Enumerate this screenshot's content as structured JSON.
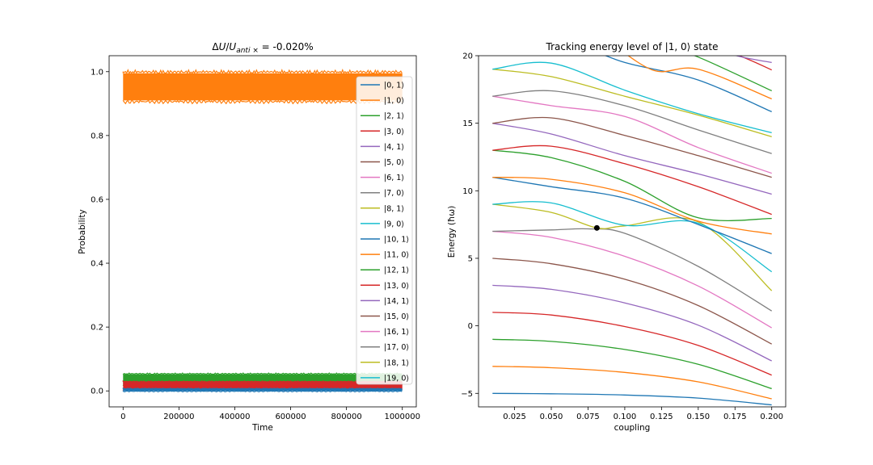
{
  "chart_data": [
    {
      "type": "line",
      "title": "ΔU/U_{anti×} = -0.020%",
      "title_parts": {
        "delta": "Δ",
        "u1": "U",
        "slash": "/",
        "u2": "U",
        "sub": "anti ×",
        "rest": " = -0.020%"
      },
      "xlabel": "Time",
      "ylabel": "Probability",
      "xlim": [
        -50000,
        1050000
      ],
      "ylim": [
        -0.05,
        1.05
      ],
      "xticks": [
        0,
        200000,
        400000,
        600000,
        800000,
        1000000
      ],
      "xtick_labels": [
        "0",
        "200000",
        "400000",
        "600000",
        "800000",
        "1000000"
      ],
      "yticks": [
        0.0,
        0.2,
        0.4,
        0.6,
        0.8,
        1.0
      ],
      "ytick_labels": [
        "0.0",
        "0.2",
        "0.4",
        "0.6",
        "0.8",
        "1.0"
      ],
      "legend_position": "right",
      "bands": [
        {
          "label": "|1, 0⟩",
          "color": "#ff7f0e",
          "x": [
            0,
            1000000
          ],
          "ymin": 0.91,
          "ymax": 0.995
        },
        {
          "label": "|2, 1⟩",
          "color": "#2ca02c",
          "x": [
            0,
            1000000
          ],
          "ymin": 0.018,
          "ymax": 0.052
        },
        {
          "label": "|3, 0⟩",
          "color": "#d62728",
          "x": [
            0,
            1000000
          ],
          "ymin": 0.004,
          "ymax": 0.028
        },
        {
          "label": "|0, 1⟩",
          "color": "#1f77b4",
          "x": [
            0,
            1000000
          ],
          "ymin": 0.0,
          "ymax": 0.006
        }
      ],
      "series": [
        {
          "name": "|0, 1⟩",
          "color": "#1f77b4"
        },
        {
          "name": "|1, 0⟩",
          "color": "#ff7f0e"
        },
        {
          "name": "|2, 1⟩",
          "color": "#2ca02c"
        },
        {
          "name": "|3, 0⟩",
          "color": "#d62728"
        },
        {
          "name": "|4, 1⟩",
          "color": "#9467bd"
        },
        {
          "name": "|5, 0⟩",
          "color": "#8c564b"
        },
        {
          "name": "|6, 1⟩",
          "color": "#e377c2"
        },
        {
          "name": "|7, 0⟩",
          "color": "#7f7f7f"
        },
        {
          "name": "|8, 1⟩",
          "color": "#bcbd22"
        },
        {
          "name": "|9, 0⟩",
          "color": "#17becf"
        },
        {
          "name": "|10, 1⟩",
          "color": "#1f77b4"
        },
        {
          "name": "|11, 0⟩",
          "color": "#ff7f0e"
        },
        {
          "name": "|12, 1⟩",
          "color": "#2ca02c"
        },
        {
          "name": "|13, 0⟩",
          "color": "#d62728"
        },
        {
          "name": "|14, 1⟩",
          "color": "#9467bd"
        },
        {
          "name": "|15, 0⟩",
          "color": "#8c564b"
        },
        {
          "name": "|16, 1⟩",
          "color": "#e377c2"
        },
        {
          "name": "|17, 0⟩",
          "color": "#7f7f7f"
        },
        {
          "name": "|18, 1⟩",
          "color": "#bcbd22"
        },
        {
          "name": "|19, 0⟩",
          "color": "#17becf"
        }
      ]
    },
    {
      "type": "line",
      "title": "Tracking energy level of |1, 0⟩ state",
      "xlabel": "coupling",
      "ylabel": "Energy (ħω)",
      "xlim": [
        0.0005,
        0.2095
      ],
      "ylim": [
        -6.0,
        20.0
      ],
      "xticks": [
        0.025,
        0.05,
        0.075,
        0.1,
        0.125,
        0.15,
        0.175,
        0.2
      ],
      "xtick_labels": [
        "0.025",
        "0.050",
        "0.075",
        "0.100",
        "0.125",
        "0.150",
        "0.175",
        "0.200"
      ],
      "yticks": [
        -5,
        0,
        5,
        10,
        15,
        20
      ],
      "ytick_labels": [
        "−5",
        "0",
        "5",
        "10",
        "15",
        "20"
      ],
      "grid": false,
      "marker": {
        "x": 0.081,
        "y": 7.25,
        "color": "#000000"
      },
      "series": [
        {
          "color": "#1f77b4",
          "x": [
            0.01,
            0.05,
            0.1,
            0.15,
            0.2
          ],
          "y": [
            -5.0,
            -5.03,
            -5.12,
            -5.35,
            -5.85
          ]
        },
        {
          "color": "#ff7f0e",
          "x": [
            0.01,
            0.05,
            0.1,
            0.15,
            0.2
          ],
          "y": [
            -3.0,
            -3.1,
            -3.45,
            -4.15,
            -5.4
          ]
        },
        {
          "color": "#2ca02c",
          "x": [
            0.01,
            0.05,
            0.1,
            0.15,
            0.2
          ],
          "y": [
            -1.0,
            -1.15,
            -1.75,
            -2.85,
            -4.65
          ]
        },
        {
          "color": "#d62728",
          "x": [
            0.01,
            0.05,
            0.1,
            0.15,
            0.2
          ],
          "y": [
            1.0,
            0.8,
            -0.05,
            -1.45,
            -3.65
          ]
        },
        {
          "color": "#9467bd",
          "x": [
            0.01,
            0.05,
            0.1,
            0.15,
            0.2
          ],
          "y": [
            3.0,
            2.7,
            1.7,
            0.05,
            -2.6
          ]
        },
        {
          "color": "#8c564b",
          "x": [
            0.01,
            0.05,
            0.1,
            0.15,
            0.2
          ],
          "y": [
            5.0,
            4.6,
            3.45,
            1.5,
            -1.35
          ]
        },
        {
          "color": "#e377c2",
          "x": [
            0.01,
            0.05,
            0.1,
            0.15,
            0.2
          ],
          "y": [
            7.0,
            6.55,
            5.15,
            2.95,
            -0.15
          ]
        },
        {
          "color": "#7f7f7f",
          "x": [
            0.01,
            0.05,
            0.075,
            0.1,
            0.15,
            0.2
          ],
          "y": [
            7.0,
            7.1,
            7.18,
            6.85,
            4.4,
            1.1
          ]
        },
        {
          "color": "#bcbd22",
          "x": [
            0.01,
            0.05,
            0.081,
            0.1,
            0.15,
            0.2
          ],
          "y": [
            9.0,
            8.4,
            7.25,
            7.4,
            7.7,
            2.6
          ]
        },
        {
          "color": "#17becf",
          "x": [
            0.01,
            0.05,
            0.1,
            0.15,
            0.2
          ],
          "y": [
            9.0,
            9.1,
            7.45,
            7.6,
            4.0
          ]
        },
        {
          "color": "#1f77b4",
          "x": [
            0.01,
            0.05,
            0.1,
            0.15,
            0.2
          ],
          "y": [
            11.0,
            10.3,
            9.45,
            7.5,
            5.35
          ]
        },
        {
          "color": "#ff7f0e",
          "x": [
            0.01,
            0.05,
            0.1,
            0.15,
            0.2
          ],
          "y": [
            11.0,
            10.85,
            9.85,
            7.75,
            6.8
          ]
        },
        {
          "color": "#2ca02c",
          "x": [
            0.01,
            0.05,
            0.1,
            0.15,
            0.2
          ],
          "y": [
            13.0,
            12.45,
            10.7,
            8.0,
            7.95
          ]
        },
        {
          "color": "#d62728",
          "x": [
            0.01,
            0.05,
            0.1,
            0.15,
            0.2
          ],
          "y": [
            13.0,
            13.3,
            12.0,
            10.3,
            8.25
          ]
        },
        {
          "color": "#9467bd",
          "x": [
            0.01,
            0.05,
            0.1,
            0.15,
            0.2
          ],
          "y": [
            15.0,
            14.2,
            12.6,
            11.25,
            9.75
          ]
        },
        {
          "color": "#8c564b",
          "x": [
            0.01,
            0.05,
            0.1,
            0.15,
            0.2
          ],
          "y": [
            15.0,
            15.4,
            14.1,
            12.6,
            11.0
          ]
        },
        {
          "color": "#e377c2",
          "x": [
            0.01,
            0.05,
            0.1,
            0.15,
            0.2
          ],
          "y": [
            17.0,
            16.3,
            15.5,
            13.2,
            11.3
          ]
        },
        {
          "color": "#7f7f7f",
          "x": [
            0.01,
            0.05,
            0.1,
            0.15,
            0.2
          ],
          "y": [
            17.0,
            17.4,
            16.3,
            14.5,
            12.75
          ]
        },
        {
          "color": "#bcbd22",
          "x": [
            0.01,
            0.05,
            0.1,
            0.15,
            0.2
          ],
          "y": [
            19.0,
            18.45,
            17.0,
            15.6,
            14.0
          ]
        },
        {
          "color": "#17becf",
          "x": [
            0.01,
            0.05,
            0.1,
            0.15,
            0.2
          ],
          "y": [
            19.0,
            19.45,
            17.45,
            15.7,
            14.3
          ]
        },
        {
          "color": "#1f77b4",
          "x": [
            0.07,
            0.1,
            0.15,
            0.2
          ],
          "y": [
            20.8,
            19.5,
            18.2,
            15.85
          ]
        },
        {
          "color": "#ff7f0e",
          "x": [
            0.09,
            0.12,
            0.15,
            0.2
          ],
          "y": [
            21.0,
            18.9,
            19.0,
            16.8
          ]
        },
        {
          "color": "#2ca02c",
          "x": [
            0.12,
            0.15,
            0.2
          ],
          "y": [
            21.0,
            19.9,
            17.4
          ]
        },
        {
          "color": "#d62728",
          "x": [
            0.15,
            0.175,
            0.2
          ],
          "y": [
            20.6,
            20.1,
            18.95
          ]
        },
        {
          "color": "#9467bd",
          "x": [
            0.16,
            0.18,
            0.2
          ],
          "y": [
            20.5,
            19.9,
            19.5
          ]
        }
      ]
    }
  ]
}
